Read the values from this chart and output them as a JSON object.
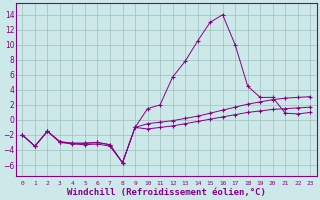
{
  "background_color": "#cce8e8",
  "grid_color": "#9fbfbf",
  "line_color": "#880088",
  "xlabel": "Windchill (Refroidissement éolien,°C)",
  "xlabel_fontsize": 6.5,
  "ytick_values": [
    -6,
    -4,
    -2,
    0,
    2,
    4,
    6,
    8,
    10,
    12,
    14
  ],
  "ylim": [
    -7.5,
    15.5
  ],
  "xlim": [
    -0.5,
    23.5
  ],
  "line1_x": [
    0,
    1,
    2,
    3,
    4,
    5,
    6,
    7,
    8,
    9,
    10,
    11,
    12,
    13,
    14,
    15,
    16,
    17,
    18,
    19,
    20,
    21,
    22,
    23
  ],
  "line1_y": [
    -2.0,
    -3.5,
    -1.5,
    -3.0,
    -3.2,
    -3.3,
    -3.2,
    -3.5,
    -5.7,
    -1.0,
    1.5,
    2.0,
    5.7,
    7.8,
    10.5,
    13.0,
    14.0,
    10.0,
    4.5,
    3.0,
    3.0,
    0.9,
    0.8,
    1.0
  ],
  "line2_x": [
    0,
    1,
    2,
    3,
    4,
    5,
    6,
    7,
    8,
    9,
    10,
    11,
    12,
    13,
    14,
    15,
    16,
    17,
    18,
    19,
    20,
    21,
    22,
    23
  ],
  "line2_y": [
    -2.0,
    -3.5,
    -1.5,
    -2.9,
    -3.1,
    -3.1,
    -3.0,
    -3.3,
    -5.7,
    -1.0,
    -0.5,
    -0.3,
    -0.1,
    0.2,
    0.5,
    0.9,
    1.3,
    1.7,
    2.1,
    2.4,
    2.7,
    2.9,
    3.0,
    3.1
  ],
  "line3_x": [
    0,
    1,
    2,
    3,
    4,
    5,
    6,
    7,
    8,
    9,
    10,
    11,
    12,
    13,
    14,
    15,
    16,
    17,
    18,
    19,
    20,
    21,
    22,
    23
  ],
  "line3_y": [
    -2.0,
    -3.5,
    -1.5,
    -2.9,
    -3.1,
    -3.1,
    -3.0,
    -3.3,
    -5.7,
    -1.0,
    -1.2,
    -1.0,
    -0.8,
    -0.5,
    -0.2,
    0.1,
    0.4,
    0.7,
    1.0,
    1.2,
    1.4,
    1.5,
    1.6,
    1.7
  ]
}
